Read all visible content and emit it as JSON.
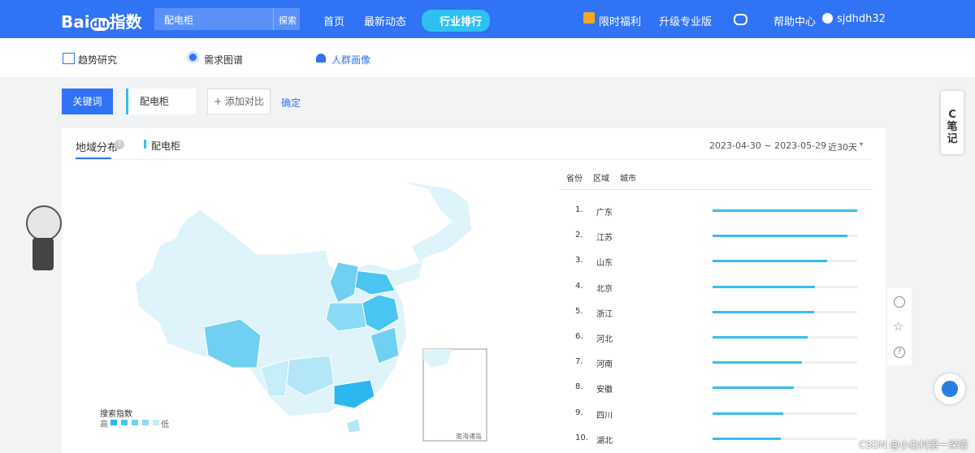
{
  "header": {
    "logo": {
      "left": "Bai",
      "mid": "du",
      "right": "指数"
    },
    "search": {
      "query": "配电柜",
      "button": "探索"
    },
    "nav": [
      "首页",
      "最新动态",
      "行业排行"
    ],
    "right_nav": [
      "限时福利",
      "升级专业版",
      "帮助中心",
      "sjdhdh32"
    ]
  },
  "subnav": [
    "趋势研究",
    "需求图谱",
    "人群画像"
  ],
  "toolbar": {
    "keyword_button": "关键词",
    "keyword": "配电柜",
    "add": "+ 添加对比",
    "confirm": "确定"
  },
  "panel": {
    "tab": "地域分布",
    "legend": "配电柜",
    "date_range": "2023-04-30 ~ 2023-05-29",
    "period": "近30天",
    "map_legend": {
      "title": "搜索指数",
      "high": "高",
      "low": "低"
    },
    "inset": "南海诸岛",
    "ranking_tabs": [
      "省份",
      "区域",
      "城市"
    ],
    "ranking": [
      {
        "rank": "1.",
        "name": "广东",
        "value": 100
      },
      {
        "rank": "2.",
        "name": "江苏",
        "value": 93
      },
      {
        "rank": "3.",
        "name": "山东",
        "value": 79
      },
      {
        "rank": "4.",
        "name": "北京",
        "value": 71
      },
      {
        "rank": "5.",
        "name": "浙江",
        "value": 70
      },
      {
        "rank": "6.",
        "name": "河北",
        "value": 66
      },
      {
        "rank": "7.",
        "name": "河南",
        "value": 62
      },
      {
        "rank": "8.",
        "name": "安徽",
        "value": 56
      },
      {
        "rank": "9.",
        "name": "四川",
        "value": 49
      },
      {
        "rank": "10.",
        "name": "湖北",
        "value": 47
      }
    ]
  },
  "side": {
    "note": "C\n笔\n记"
  },
  "watermark": "CSDN @小白村第一深情"
}
